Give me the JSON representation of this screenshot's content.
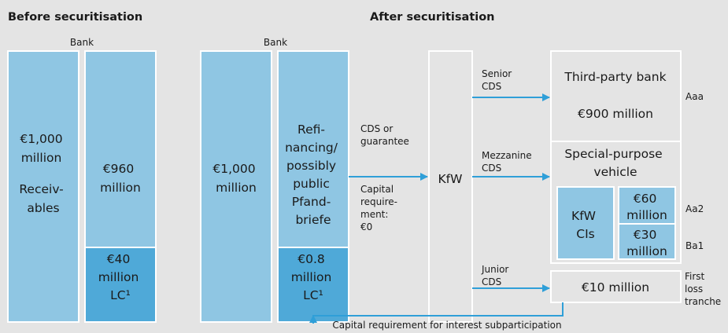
{
  "before": {
    "heading": "Before securitisation",
    "bank": "Bank",
    "receivables": [
      "€1,000",
      "million",
      "Receiv-",
      "ables"
    ],
    "funding": [
      "€960",
      "million"
    ],
    "lc": [
      "€40",
      "million",
      "LC¹"
    ]
  },
  "after": {
    "heading": "After securitisation",
    "bank": "Bank",
    "receivables": [
      "€1,000",
      "million"
    ],
    "funding": [
      "Refi-",
      "nancing/",
      "possibly",
      "public",
      "Pfand-",
      "briefe"
    ],
    "lc": [
      "€0.8",
      "million",
      "LC¹"
    ],
    "cds": [
      "CDS or",
      "guarantee"
    ],
    "capital": [
      "Capital",
      "require-",
      "ment:",
      "€0"
    ],
    "kfw": "KfW",
    "senior": [
      "Senior",
      "CDS"
    ],
    "mezzanine": [
      "Mezzanine",
      "CDS"
    ],
    "junior": [
      "Junior",
      "CDS"
    ],
    "third_party": {
      "title": "Third-party bank",
      "amount": "€900 million",
      "rating": "Aaa"
    },
    "spv": {
      "title": [
        "Special-purpose",
        "vehicle"
      ],
      "kfw_cis": [
        "KfW",
        "CIs"
      ],
      "tranche_a": [
        "€60",
        "million"
      ],
      "rating_a": "Aa2",
      "tranche_b": [
        "€30",
        "million"
      ],
      "rating_b": "Ba1"
    },
    "first_loss": {
      "amount": "€10 million",
      "label": [
        "First",
        "loss",
        "tranche"
      ]
    },
    "footer": "Capital requirement for interest subparticipation"
  }
}
